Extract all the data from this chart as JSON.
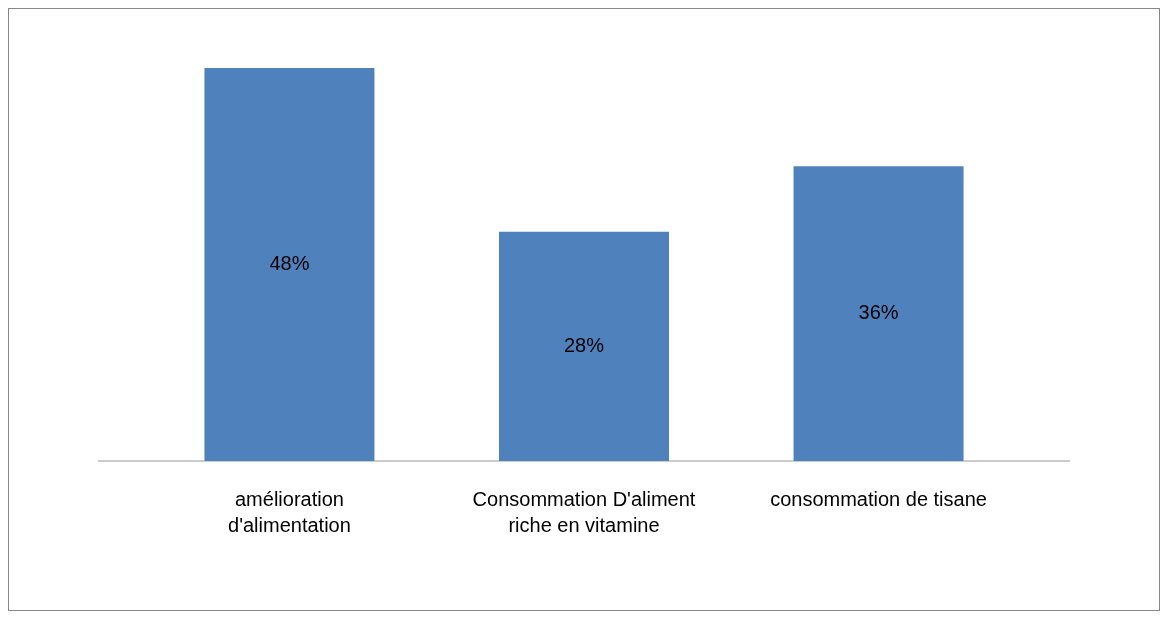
{
  "chart_data": {
    "type": "bar",
    "categories": [
      "amélioration d'alimentation",
      "Consommation D'aliment riche en vitamine",
      "consommation de tisane"
    ],
    "values": [
      48,
      28,
      36
    ],
    "color": "#4f81bd",
    "value_labels": [
      "48%",
      "28%",
      "36%"
    ]
  }
}
